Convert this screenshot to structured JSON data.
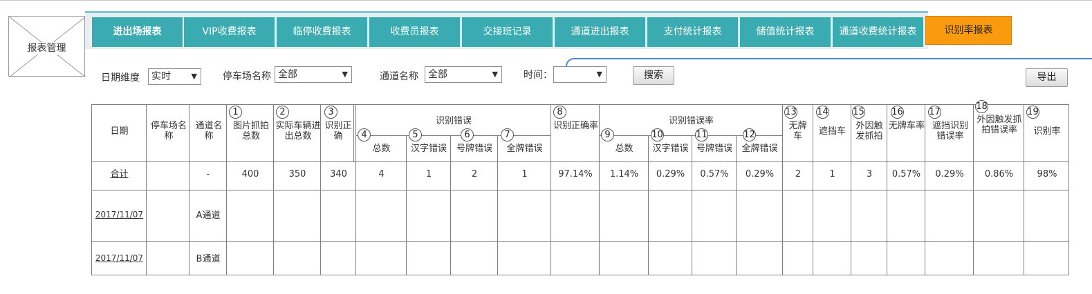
{
  "logo": {
    "label": "报表管理"
  },
  "tabs": [
    "进出场报表",
    "VIP收费报表",
    "临停收费报表",
    "收费员报表",
    "交接班记录",
    "通道进出报表",
    "支付统计报表",
    "储值统计报表",
    "通道收费统计报表"
  ],
  "active_tab": "识别率报表",
  "filters": {
    "date_dim_label": "日期维度",
    "date_dim_value": "实时",
    "lot_label": "停车场名称",
    "lot_value": "全部",
    "channel_label": "通道名称",
    "channel_value": "全部",
    "time_label": "时间：",
    "time_value": "",
    "search_button": "搜索",
    "export_button": "导出"
  },
  "table": {
    "headers": {
      "date": "日期",
      "lot": "停车场名称",
      "channel": "通道名称",
      "c1": "图片抓拍总数",
      "c2": "实际车辆进出总数",
      "c3": "识别正确",
      "group_err": "识别错误",
      "c4": "总数",
      "c5": "汉字错误",
      "c6": "号牌错误",
      "c7": "全牌错误",
      "c8": "识别正确率",
      "group_rate": "识别错误率",
      "c9": "总数",
      "c10": "汉字错误",
      "c11": "号牌错误",
      "c12": "全牌错误",
      "c13": "无牌车",
      "c14": "遮挡车",
      "c15": "外因触发抓拍",
      "c16": "无牌车率",
      "c17": "遮挡识别错误率",
      "c18": "外因触发抓拍错误率",
      "c19": "识别率"
    },
    "header_numbers": [
      "1",
      "2",
      "3",
      "4",
      "5",
      "6",
      "7",
      "8",
      "9",
      "10",
      "11",
      "12",
      "13",
      "14",
      "15",
      "16",
      "17",
      "18",
      "19"
    ],
    "total_row": [
      "合计",
      "",
      "-",
      "400",
      "350",
      "340",
      "4",
      "1",
      "2",
      "1",
      "97.14%",
      "1.14%",
      "0.29%",
      "0.57%",
      "0.29%",
      "2",
      "1",
      "3",
      "0.57%",
      "0.29%",
      "0.86%",
      "98%"
    ],
    "rows": [
      {
        "date": "2017/11/07",
        "channel": "A通道"
      },
      {
        "date": "2017/11/07",
        "channel": "B通道"
      }
    ]
  }
}
